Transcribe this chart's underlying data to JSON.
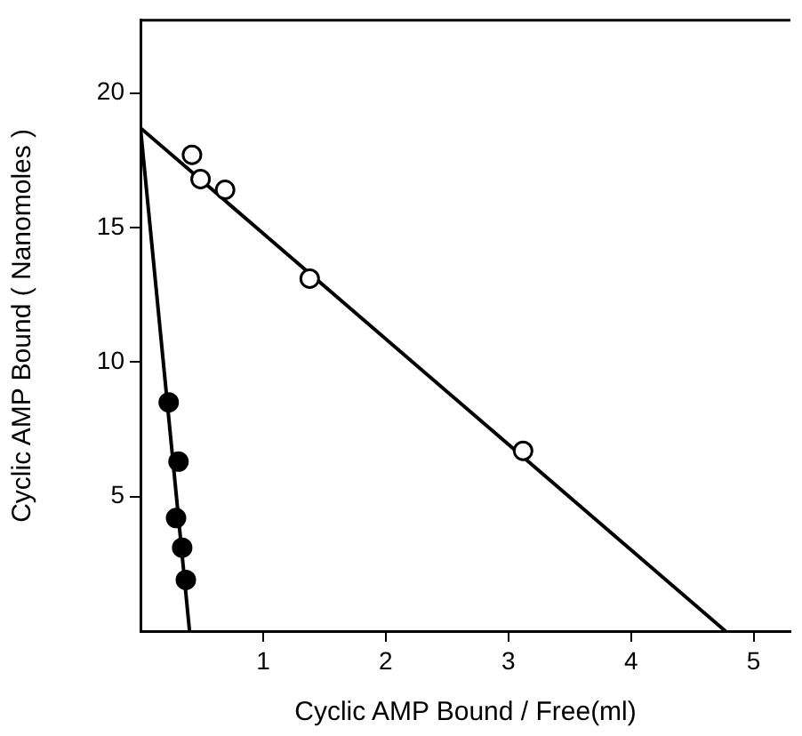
{
  "chart_data": {
    "type": "scatter",
    "xlabel": "Cyclic AMP Bound / Free(ml)",
    "ylabel": "Cyclic AMP Bound ( Nanomoles )",
    "xlim": [
      0,
      5.3
    ],
    "ylim": [
      0,
      22.7
    ],
    "xticks": [
      1,
      2,
      3,
      4,
      5
    ],
    "yticks": [
      5,
      10,
      15,
      20
    ],
    "grid": false,
    "legend": false,
    "marker": "circle",
    "series": [
      {
        "type": "line",
        "marker": "none",
        "color": "#000000",
        "x": [
          0,
          4.77
        ],
        "values": [
          18.7,
          0
        ]
      },
      {
        "type": "line",
        "marker": "none",
        "color": "#000000",
        "x": [
          0,
          0.4
        ],
        "values": [
          18.7,
          0
        ]
      },
      {
        "color": "#ffffff",
        "x": [
          0.42,
          0.49,
          0.69,
          1.38,
          3.12
        ],
        "values": [
          17.7,
          16.8,
          16.4,
          13.1,
          6.7
        ]
      },
      {
        "color": "#000000",
        "x": [
          0.23,
          0.31,
          0.29,
          0.34,
          0.37
        ],
        "values": [
          8.5,
          6.3,
          4.2,
          3.1,
          1.9
        ]
      }
    ]
  }
}
